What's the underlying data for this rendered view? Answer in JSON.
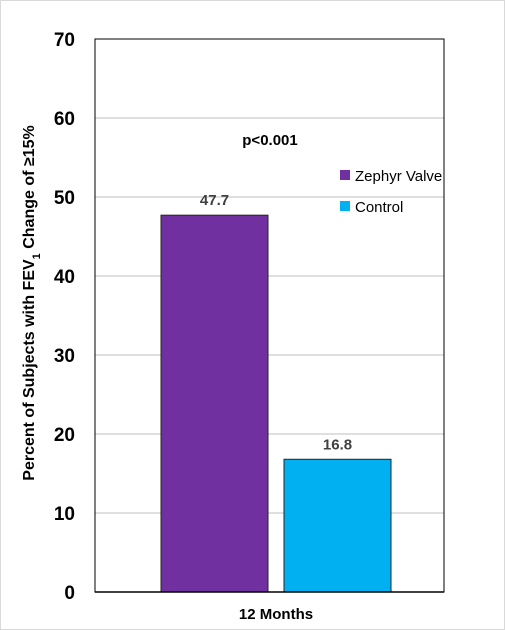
{
  "chart_data": {
    "type": "bar",
    "categories": [
      "12 Months"
    ],
    "series": [
      {
        "name": "Zephyr Valve",
        "values": [
          47.7
        ],
        "color": "#7030A0",
        "label": "47.7"
      },
      {
        "name": "Control",
        "values": [
          16.8
        ],
        "color": "#00B0F0",
        "label": "16.8"
      }
    ],
    "ylabel_main": "Percent of Subjects with FEV",
    "ylabel_sub": "1",
    "ylabel_tail": " Change of ≥15%",
    "ylim": [
      0,
      70
    ],
    "yticks": [
      "0",
      "10",
      "20",
      "30",
      "40",
      "50",
      "60",
      "70"
    ],
    "annotation": "p<0.001",
    "legend_position": "top-right",
    "grid": true
  }
}
